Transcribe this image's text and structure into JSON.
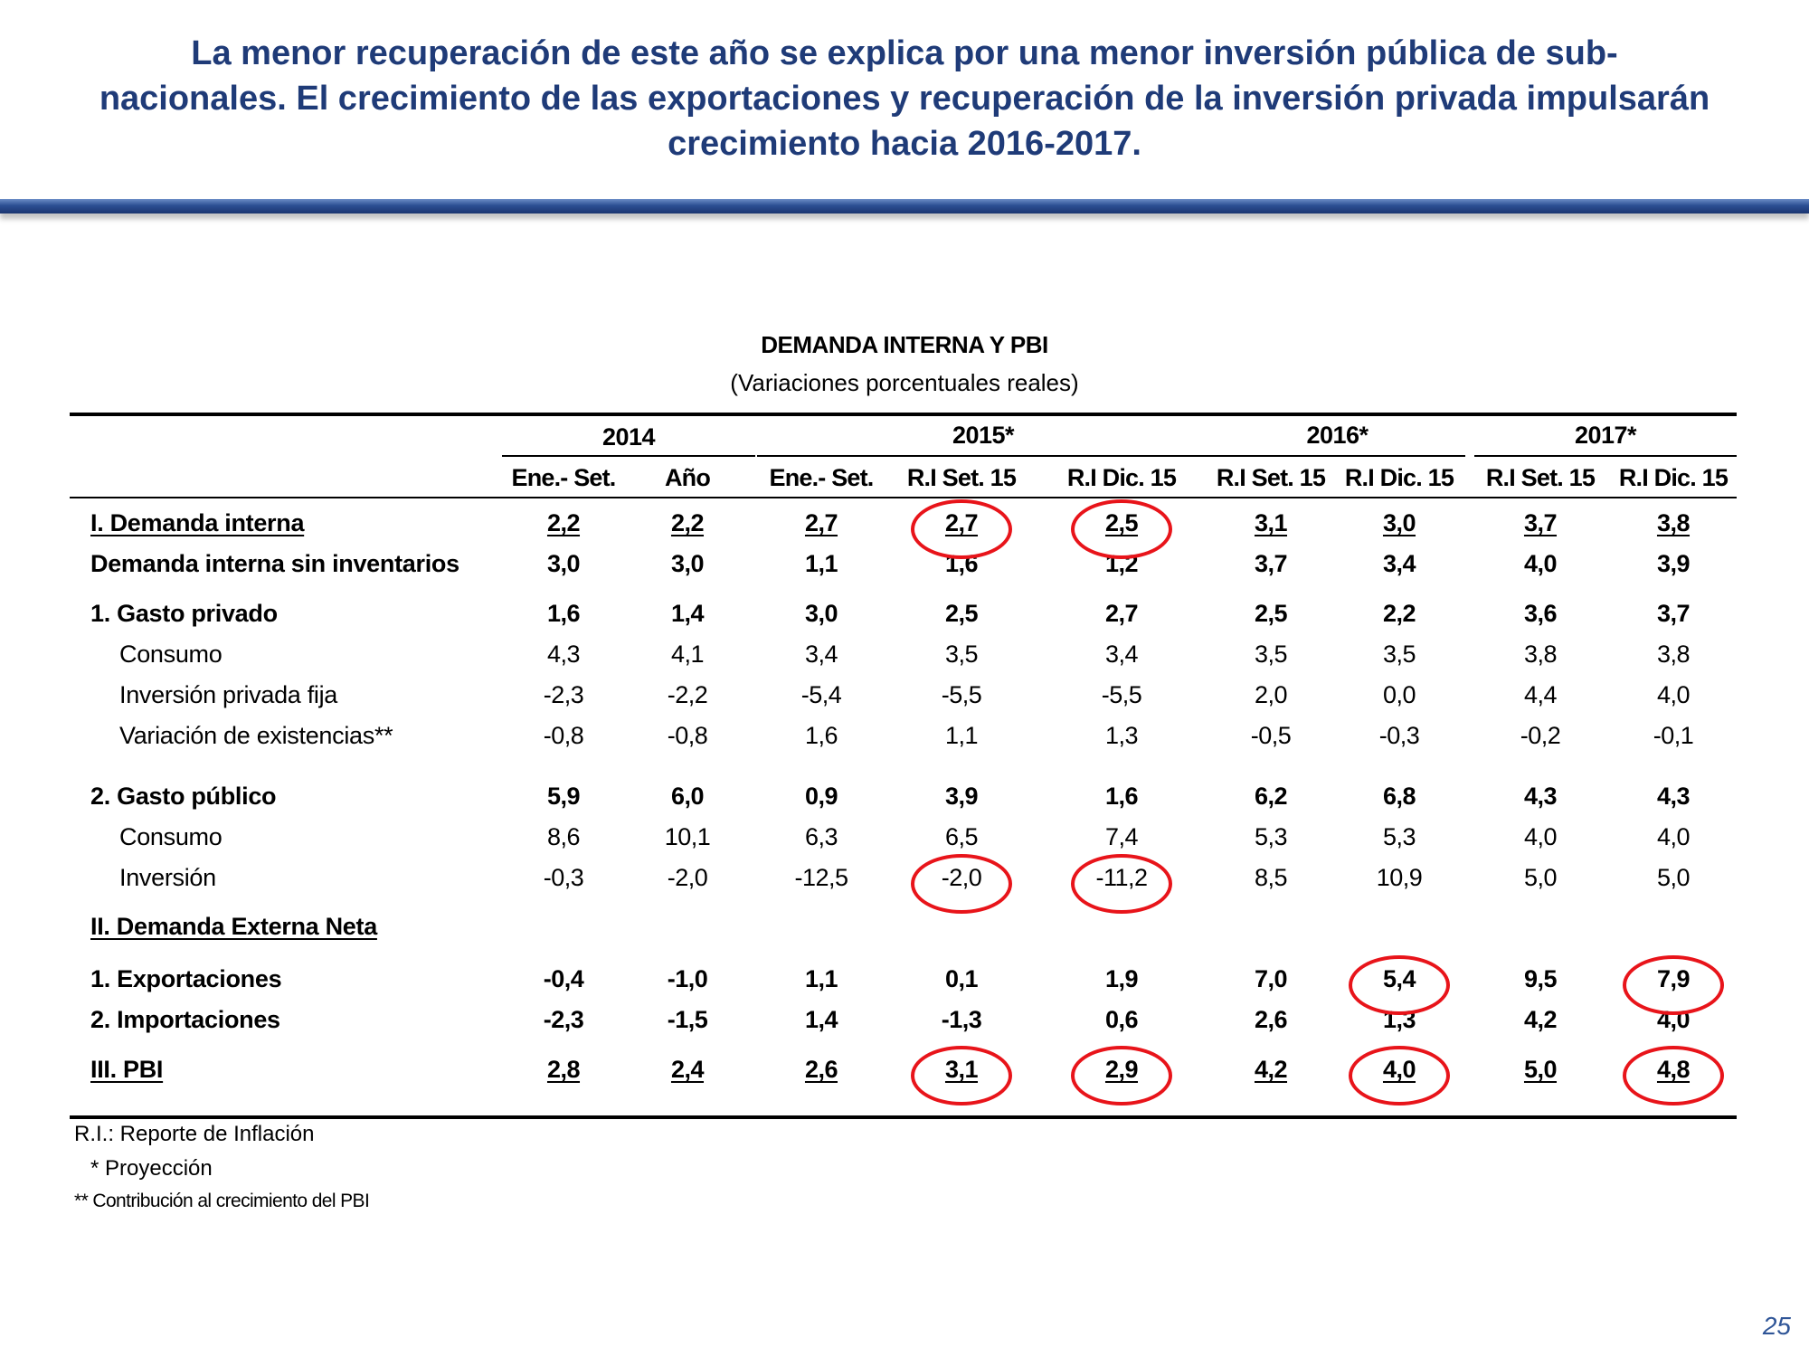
{
  "slide": {
    "headline_lines": [
      "La menor recuperación de este año se explica por una menor inversión pública de sub-",
      "nacionales. El crecimiento de las exportaciones y recuperación de la inversión privada impulsarán",
      "crecimiento hacia 2016-2017."
    ],
    "page_number": "25",
    "accent_color": "#1f3b78",
    "highlight_color": "#e8141a"
  },
  "table": {
    "title": "DEMANDA INTERNA Y PBI",
    "subtitle": "(Variaciones porcentuales reales)",
    "years": [
      "2014",
      "2015*",
      "2016*",
      "2017*"
    ],
    "columns": [
      "Ene.- Set.",
      "Año",
      "Ene.- Set.",
      "R.I Set. 15",
      "R.I Dic. 15",
      "R.I Set. 15",
      "R.I Dic. 15",
      "R.I Set. 15",
      "R.I Dic. 15"
    ],
    "rows": [
      {
        "label": "I. Demanda interna",
        "values": [
          "2,2",
          "2,2",
          "2,7",
          "2,7",
          "2,5",
          "3,1",
          "3,0",
          "3,7",
          "3,8"
        ],
        "bold": true,
        "underline": true
      },
      {
        "label": "Demanda interna sin inventarios",
        "values": [
          "3,0",
          "3,0",
          "1,1",
          "1,6",
          "1,2",
          "3,7",
          "3,4",
          "4,0",
          "3,9"
        ],
        "bold": true
      },
      {
        "label": "1. Gasto privado",
        "values": [
          "1,6",
          "1,4",
          "3,0",
          "2,5",
          "2,7",
          "2,5",
          "2,2",
          "3,6",
          "3,7"
        ],
        "bold": true
      },
      {
        "label": "Consumo",
        "values": [
          "4,3",
          "4,1",
          "3,4",
          "3,5",
          "3,4",
          "3,5",
          "3,5",
          "3,8",
          "3,8"
        ],
        "indent": true
      },
      {
        "label": "Inversión privada fija",
        "values": [
          "-2,3",
          "-2,2",
          "-5,4",
          "-5,5",
          "-5,5",
          "2,0",
          "0,0",
          "4,4",
          "4,0"
        ],
        "indent": true
      },
      {
        "label": "Variación de existencias**",
        "values": [
          "-0,8",
          "-0,8",
          "1,6",
          "1,1",
          "1,3",
          "-0,5",
          "-0,3",
          "-0,2",
          "-0,1"
        ],
        "indent": true
      },
      {
        "label": "2. Gasto público",
        "values": [
          "5,9",
          "6,0",
          "0,9",
          "3,9",
          "1,6",
          "6,2",
          "6,8",
          "4,3",
          "4,3"
        ],
        "bold": true
      },
      {
        "label": "Consumo",
        "values": [
          "8,6",
          "10,1",
          "6,3",
          "6,5",
          "7,4",
          "5,3",
          "5,3",
          "4,0",
          "4,0"
        ],
        "indent": true
      },
      {
        "label": "Inversión",
        "values": [
          "-0,3",
          "-2,0",
          "-12,5",
          "-2,0",
          "-11,2",
          "8,5",
          "10,9",
          "5,0",
          "5,0"
        ],
        "indent": true
      },
      {
        "label": "II. Demanda Externa Neta",
        "values": [
          "",
          "",
          "",
          "",
          "",
          "",
          "",
          "",
          ""
        ],
        "bold": true,
        "underline": true
      },
      {
        "label": "1. Exportaciones",
        "values": [
          "-0,4",
          "-1,0",
          "1,1",
          "0,1",
          "1,9",
          "7,0",
          "5,4",
          "9,5",
          "7,9"
        ],
        "bold": true
      },
      {
        "label": "2. Importaciones",
        "values": [
          "-2,3",
          "-1,5",
          "1,4",
          "-1,3",
          "0,6",
          "2,6",
          "1,3",
          "4,2",
          "4,0"
        ],
        "bold": true
      },
      {
        "label": "III. PBI",
        "values": [
          "2,8",
          "2,4",
          "2,6",
          "3,1",
          "2,9",
          "4,2",
          "4,0",
          "5,0",
          "4,8"
        ],
        "bold": true,
        "underline": true
      }
    ],
    "highlighted_cells": [
      {
        "row": 0,
        "col": 3
      },
      {
        "row": 0,
        "col": 4
      },
      {
        "row": 8,
        "col": 3
      },
      {
        "row": 8,
        "col": 4
      },
      {
        "row": 10,
        "col": 6
      },
      {
        "row": 10,
        "col": 8
      },
      {
        "row": 12,
        "col": 3
      },
      {
        "row": 12,
        "col": 4
      },
      {
        "row": 12,
        "col": 6
      },
      {
        "row": 12,
        "col": 8
      }
    ],
    "notes": [
      "R.I.: Reporte de Inflación",
      "* Proyección",
      "** Contribución al crecimiento del PBI"
    ]
  }
}
